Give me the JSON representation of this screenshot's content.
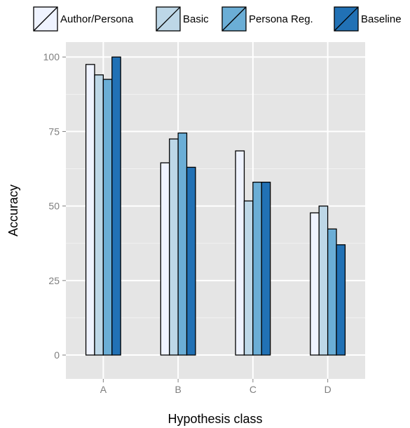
{
  "chart_data": {
    "type": "bar",
    "title": "",
    "xlabel": "Hypothesis class",
    "ylabel": "Accuracy",
    "categories": [
      "A",
      "B",
      "C",
      "D"
    ],
    "ylim": [
      -8,
      105
    ],
    "yticks": [
      0,
      25,
      50,
      75,
      100
    ],
    "grid": true,
    "legend_position": "top",
    "series": [
      {
        "name": "Author/Persona",
        "color": "#eff3ff",
        "values": [
          97.5,
          64.5,
          68.5,
          47.7
        ]
      },
      {
        "name": "Basic",
        "color": "#bdd7e7",
        "values": [
          94,
          72.5,
          51.7,
          50
        ]
      },
      {
        "name": "Persona Reg.",
        "color": "#6baed6",
        "values": [
          92.5,
          74.5,
          58,
          42.3
        ]
      },
      {
        "name": "Baseline",
        "color": "#2171b5",
        "values": [
          100,
          63,
          58,
          37
        ]
      }
    ]
  }
}
